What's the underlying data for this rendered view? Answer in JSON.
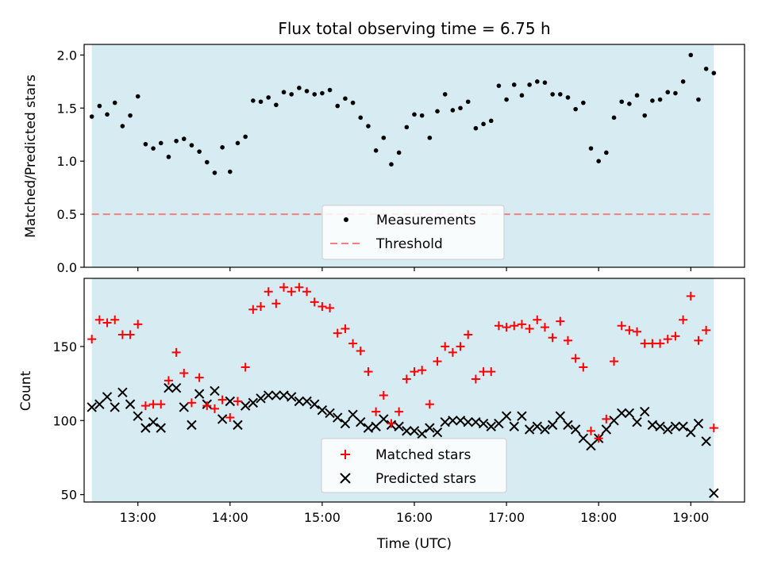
{
  "chart_data": [
    {
      "type": "scatter",
      "title": "Flux total observing time = 6.75 h",
      "xlabel": "",
      "ylabel": "Matched/Predicted stars",
      "xlim": [
        "12:25",
        "19:35"
      ],
      "ylim": [
        0,
        2.1
      ],
      "yticks": [
        0.0,
        0.5,
        1.0,
        1.5,
        2.0
      ],
      "ytick_labels": [
        "0.0",
        "0.5",
        "1.0",
        "1.5",
        "2.0"
      ],
      "shaded_span": {
        "start": "12:30",
        "end": "19:15",
        "color": "#add8e6"
      },
      "legend_position": "lower center",
      "series": [
        {
          "name": "Measurements",
          "marker": "dot",
          "color": "#000000",
          "x": [
            "12:30",
            "12:35",
            "12:40",
            "12:45",
            "12:50",
            "12:55",
            "13:00",
            "13:05",
            "13:10",
            "13:15",
            "13:20",
            "13:25",
            "13:30",
            "13:35",
            "13:40",
            "13:45",
            "13:50",
            "13:55",
            "14:00",
            "14:05",
            "14:10",
            "14:15",
            "14:20",
            "14:25",
            "14:30",
            "14:35",
            "14:40",
            "14:45",
            "14:50",
            "14:55",
            "15:00",
            "15:05",
            "15:10",
            "15:15",
            "15:20",
            "15:25",
            "15:30",
            "15:35",
            "15:40",
            "15:45",
            "15:50",
            "15:55",
            "16:00",
            "16:05",
            "16:10",
            "16:15",
            "16:20",
            "16:25",
            "16:30",
            "16:35",
            "16:40",
            "16:45",
            "16:50",
            "16:55",
            "17:00",
            "17:05",
            "17:10",
            "17:15",
            "17:20",
            "17:25",
            "17:30",
            "17:35",
            "17:40",
            "17:45",
            "17:50",
            "17:55",
            "18:00",
            "18:05",
            "18:10",
            "18:15",
            "18:20",
            "18:25",
            "18:30",
            "18:35",
            "18:40",
            "18:45",
            "18:50",
            "18:55",
            "19:00",
            "19:05",
            "19:10",
            "19:15"
          ],
          "y": [
            1.42,
            1.52,
            1.44,
            1.55,
            1.33,
            1.43,
            1.61,
            1.16,
            1.12,
            1.17,
            1.04,
            1.19,
            1.21,
            1.15,
            1.09,
            0.99,
            0.89,
            1.13,
            0.9,
            1.17,
            1.23,
            1.57,
            1.56,
            1.6,
            1.53,
            1.65,
            1.63,
            1.69,
            1.66,
            1.63,
            1.64,
            1.67,
            1.52,
            1.59,
            1.55,
            1.41,
            1.33,
            1.1,
            1.22,
            0.97,
            1.08,
            1.32,
            1.44,
            1.43,
            1.22,
            1.47,
            1.63,
            1.48,
            1.5,
            1.56,
            1.31,
            1.35,
            1.38,
            1.71,
            1.58,
            1.72,
            1.62,
            1.72,
            1.75,
            1.74,
            1.63,
            1.63,
            1.6,
            1.49,
            1.55,
            1.12,
            1.0,
            1.08,
            1.41,
            1.56,
            1.54,
            1.62,
            1.43,
            1.57,
            1.58,
            1.65,
            1.64,
            1.75,
            2.0,
            1.58,
            1.87,
            1.83
          ]
        },
        {
          "name": "Threshold",
          "marker": "dashed-line",
          "color": "#f08080",
          "x": [
            "12:30",
            "19:15"
          ],
          "y": [
            0.5,
            0.5
          ]
        }
      ]
    },
    {
      "type": "scatter",
      "title": "",
      "xlabel": "Time (UTC)",
      "ylabel": "Count",
      "xlim": [
        "12:25",
        "19:35"
      ],
      "ylim": [
        45,
        196
      ],
      "xticks": [
        "13:00",
        "14:00",
        "15:00",
        "16:00",
        "17:00",
        "18:00",
        "19:00"
      ],
      "yticks": [
        50,
        100,
        150
      ],
      "ytick_labels": [
        "50",
        "100",
        "150"
      ],
      "shaded_span": {
        "start": "12:30",
        "end": "19:15",
        "color": "#add8e6"
      },
      "legend_position": "lower center",
      "series": [
        {
          "name": "Matched stars",
          "marker": "plus",
          "color": "#ff0000",
          "x": [
            "12:30",
            "12:35",
            "12:40",
            "12:45",
            "12:50",
            "12:55",
            "13:00",
            "13:05",
            "13:10",
            "13:15",
            "13:20",
            "13:25",
            "13:30",
            "13:35",
            "13:40",
            "13:45",
            "13:50",
            "13:55",
            "14:00",
            "14:05",
            "14:10",
            "14:15",
            "14:20",
            "14:25",
            "14:30",
            "14:35",
            "14:40",
            "14:45",
            "14:50",
            "14:55",
            "15:00",
            "15:05",
            "15:10",
            "15:15",
            "15:20",
            "15:25",
            "15:30",
            "15:35",
            "15:40",
            "15:45",
            "15:50",
            "15:55",
            "16:00",
            "16:05",
            "16:10",
            "16:15",
            "16:20",
            "16:25",
            "16:30",
            "16:35",
            "16:40",
            "16:45",
            "16:50",
            "16:55",
            "17:00",
            "17:05",
            "17:10",
            "17:15",
            "17:20",
            "17:25",
            "17:30",
            "17:35",
            "17:40",
            "17:45",
            "17:50",
            "17:55",
            "18:00",
            "18:05",
            "18:10",
            "18:15",
            "18:20",
            "18:25",
            "18:30",
            "18:35",
            "18:40",
            "18:45",
            "18:50",
            "18:55",
            "19:00",
            "19:05",
            "19:10",
            "19:15"
          ],
          "y": [
            155,
            168,
            166,
            168,
            158,
            158,
            165,
            110,
            111,
            111,
            127,
            146,
            132,
            112,
            129,
            110,
            108,
            114,
            102,
            113,
            136,
            175,
            177,
            187,
            179,
            190,
            187,
            190,
            187,
            180,
            177,
            176,
            159,
            162,
            152,
            147,
            133,
            106,
            117,
            98,
            106,
            128,
            133,
            134,
            111,
            140,
            150,
            146,
            150,
            158,
            128,
            133,
            133,
            164,
            163,
            164,
            165,
            162,
            168,
            163,
            156,
            167,
            154,
            142,
            136,
            93,
            88,
            101,
            140,
            164,
            161,
            160,
            152,
            152,
            152,
            155,
            157,
            168,
            184,
            154,
            161,
            95
          ]
        },
        {
          "name": "Predicted stars",
          "marker": "x",
          "color": "#000000",
          "x": [
            "12:30",
            "12:35",
            "12:40",
            "12:45",
            "12:50",
            "12:55",
            "13:00",
            "13:05",
            "13:10",
            "13:15",
            "13:20",
            "13:25",
            "13:30",
            "13:35",
            "13:40",
            "13:45",
            "13:50",
            "13:55",
            "14:00",
            "14:05",
            "14:10",
            "14:15",
            "14:20",
            "14:25",
            "14:30",
            "14:35",
            "14:40",
            "14:45",
            "14:50",
            "14:55",
            "15:00",
            "15:05",
            "15:10",
            "15:15",
            "15:20",
            "15:25",
            "15:30",
            "15:35",
            "15:40",
            "15:45",
            "15:50",
            "15:55",
            "16:00",
            "16:05",
            "16:10",
            "16:15",
            "16:20",
            "16:25",
            "16:30",
            "16:35",
            "16:40",
            "16:45",
            "16:50",
            "16:55",
            "17:00",
            "17:05",
            "17:10",
            "17:15",
            "17:20",
            "17:25",
            "17:30",
            "17:35",
            "17:40",
            "17:45",
            "17:50",
            "17:55",
            "18:00",
            "18:05",
            "18:10",
            "18:15",
            "18:20",
            "18:25",
            "18:30",
            "18:35",
            "18:40",
            "18:45",
            "18:50",
            "18:55",
            "19:00",
            "19:05",
            "19:10",
            "19:15"
          ],
          "y": [
            109,
            111,
            116,
            109,
            119,
            111,
            103,
            95,
            99,
            95,
            122,
            122,
            109,
            97,
            118,
            111,
            120,
            101,
            113,
            97,
            110,
            112,
            115,
            117,
            117,
            117,
            116,
            113,
            113,
            111,
            107,
            105,
            102,
            98,
            104,
            99,
            95,
            96,
            101,
            97,
            96,
            93,
            93,
            91,
            95,
            92,
            99,
            100,
            100,
            99,
            99,
            98,
            96,
            98,
            103,
            96,
            103,
            94,
            96,
            94,
            97,
            103,
            97,
            94,
            88,
            83,
            88,
            94,
            100,
            105,
            105,
            99,
            106,
            97,
            96,
            94,
            96,
            96,
            92,
            98,
            86,
            51
          ]
        }
      ]
    }
  ]
}
